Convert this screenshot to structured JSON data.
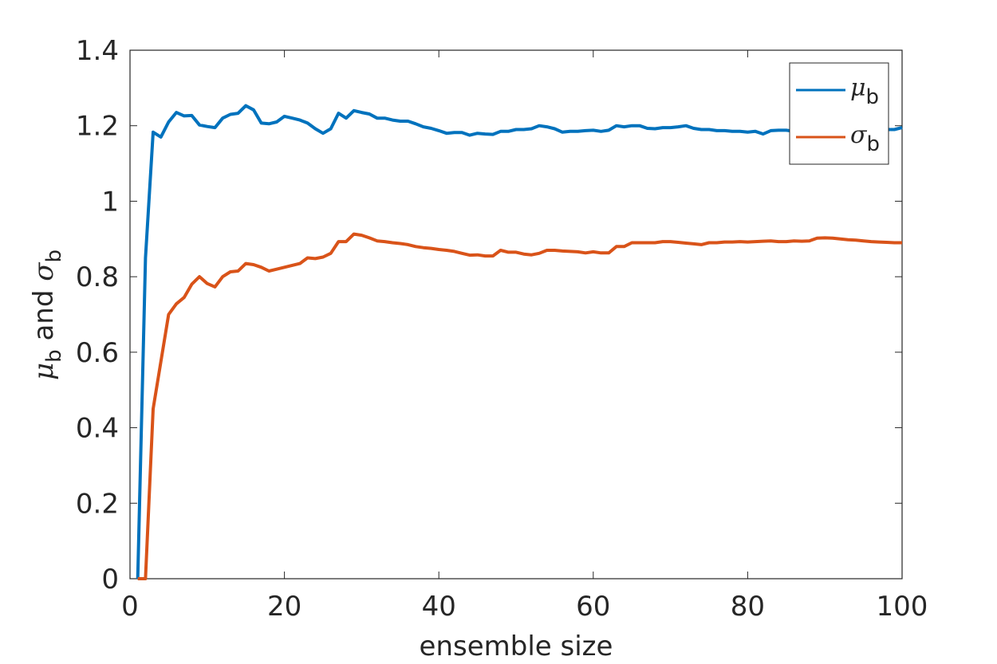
{
  "chart_data": {
    "type": "line",
    "xlabel": "ensemble size",
    "ylabel": {
      "mu": "μ",
      "mu_sub": "b",
      "and": " and ",
      "sigma": "σ",
      "sigma_sub": "b"
    },
    "xlim": [
      0,
      100
    ],
    "ylim": [
      0,
      1.4
    ],
    "xticks": [
      0,
      20,
      40,
      60,
      80,
      100
    ],
    "xtick_labels": [
      "0",
      "20",
      "40",
      "60",
      "80",
      "100"
    ],
    "yticks": [
      0,
      0.2,
      0.4,
      0.6,
      0.8,
      1.0,
      1.2,
      1.4
    ],
    "ytick_labels": [
      "0",
      "0.2",
      "0.4",
      "0.6",
      "0.8",
      "1",
      "1.2",
      "1.4"
    ],
    "grid": false,
    "legend_position": "top-right",
    "x": [
      1,
      2,
      3,
      4,
      5,
      6,
      7,
      8,
      9,
      10,
      11,
      12,
      13,
      14,
      15,
      16,
      17,
      18,
      19,
      20,
      21,
      22,
      23,
      24,
      25,
      26,
      27,
      28,
      29,
      30,
      31,
      32,
      33,
      34,
      35,
      36,
      37,
      38,
      39,
      40,
      41,
      42,
      43,
      44,
      45,
      46,
      47,
      48,
      49,
      50,
      51,
      52,
      53,
      54,
      55,
      56,
      57,
      58,
      59,
      60,
      61,
      62,
      63,
      64,
      65,
      66,
      67,
      68,
      69,
      70,
      71,
      72,
      73,
      74,
      75,
      76,
      77,
      78,
      79,
      80,
      81,
      82,
      83,
      84,
      85,
      86,
      87,
      88,
      89,
      90,
      91,
      92,
      93,
      94,
      95,
      96,
      97,
      98,
      99,
      100
    ],
    "series": [
      {
        "name": "μ",
        "name_sub": "b",
        "color": "#0072BD",
        "values": [
          0,
          0.85,
          1.183,
          1.17,
          1.21,
          1.235,
          1.226,
          1.227,
          1.202,
          1.198,
          1.195,
          1.22,
          1.23,
          1.233,
          1.253,
          1.242,
          1.207,
          1.205,
          1.21,
          1.225,
          1.22,
          1.215,
          1.207,
          1.192,
          1.18,
          1.192,
          1.233,
          1.22,
          1.24,
          1.235,
          1.231,
          1.22,
          1.22,
          1.215,
          1.212,
          1.212,
          1.205,
          1.197,
          1.193,
          1.187,
          1.18,
          1.182,
          1.182,
          1.175,
          1.18,
          1.178,
          1.177,
          1.185,
          1.185,
          1.19,
          1.19,
          1.192,
          1.2,
          1.197,
          1.192,
          1.183,
          1.185,
          1.185,
          1.187,
          1.188,
          1.185,
          1.188,
          1.2,
          1.197,
          1.2,
          1.2,
          1.193,
          1.192,
          1.195,
          1.195,
          1.197,
          1.2,
          1.193,
          1.19,
          1.19,
          1.187,
          1.187,
          1.185,
          1.185,
          1.183,
          1.185,
          1.178,
          1.187,
          1.188,
          1.188,
          1.185,
          1.188,
          1.19,
          1.19,
          1.19,
          1.19,
          1.19,
          1.19,
          1.19,
          1.19,
          1.19,
          1.19,
          1.19,
          1.19,
          1.195
        ]
      },
      {
        "name": "σ",
        "name_sub": "b",
        "color": "#D95319",
        "values": [
          0,
          0,
          0.45,
          0.575,
          0.7,
          0.728,
          0.745,
          0.78,
          0.8,
          0.782,
          0.773,
          0.8,
          0.813,
          0.815,
          0.835,
          0.832,
          0.825,
          0.815,
          0.82,
          0.825,
          0.83,
          0.835,
          0.85,
          0.848,
          0.852,
          0.862,
          0.893,
          0.893,
          0.913,
          0.91,
          0.903,
          0.895,
          0.893,
          0.89,
          0.888,
          0.885,
          0.88,
          0.877,
          0.875,
          0.872,
          0.87,
          0.867,
          0.862,
          0.857,
          0.858,
          0.855,
          0.855,
          0.87,
          0.865,
          0.865,
          0.86,
          0.858,
          0.862,
          0.87,
          0.87,
          0.868,
          0.867,
          0.866,
          0.863,
          0.866,
          0.863,
          0.863,
          0.88,
          0.88,
          0.89,
          0.89,
          0.89,
          0.89,
          0.893,
          0.893,
          0.891,
          0.889,
          0.887,
          0.885,
          0.89,
          0.89,
          0.892,
          0.892,
          0.893,
          0.892,
          0.893,
          0.894,
          0.895,
          0.893,
          0.893,
          0.895,
          0.894,
          0.895,
          0.902,
          0.903,
          0.902,
          0.9,
          0.898,
          0.897,
          0.895,
          0.893,
          0.892,
          0.891,
          0.89,
          0.89
        ]
      }
    ]
  }
}
